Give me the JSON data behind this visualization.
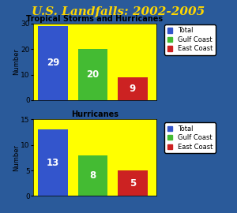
{
  "title": "U.S. Landfalls: 2002-2005",
  "title_color": "#FFD700",
  "title_fontsize": 11,
  "background_color": "#2a5a9a",
  "chart_bg_color": "#FFFF00",
  "chart1_title": "Tropical Storms and Hurricanes",
  "chart2_title": "Hurricanes",
  "chart1_values": [
    29,
    20,
    9
  ],
  "chart2_values": [
    13,
    8,
    5
  ],
  "bar_colors": [
    "#3355cc",
    "#44bb33",
    "#cc2222"
  ],
  "legend_labels": [
    "Total",
    "Gulf Coast",
    "East Coast"
  ],
  "chart1_ylim": [
    0,
    30
  ],
  "chart1_yticks": [
    0,
    10,
    20,
    30
  ],
  "chart2_ylim": [
    0,
    15
  ],
  "chart2_yticks": [
    0,
    5,
    10,
    15
  ],
  "ylabel": "Number",
  "value_label_color": "white",
  "value_label_fontsize": 8.5
}
